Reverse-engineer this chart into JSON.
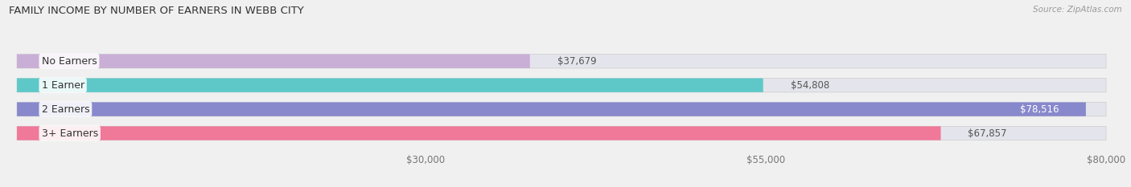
{
  "title": "FAMILY INCOME BY NUMBER OF EARNERS IN WEBB CITY",
  "source": "Source: ZipAtlas.com",
  "categories": [
    "No Earners",
    "1 Earner",
    "2 Earners",
    "3+ Earners"
  ],
  "values": [
    37679,
    54808,
    78516,
    67857
  ],
  "bar_colors": [
    "#c9aed6",
    "#5ec8c8",
    "#8888cc",
    "#f07898"
  ],
  "bg_color": "#f0f0f0",
  "bar_bg_color": "#e4e4ec",
  "xmin": 0,
  "xmax": 80000,
  "xticks": [
    30000,
    55000,
    80000
  ],
  "xtick_labels": [
    "$30,000",
    "$55,000",
    "$80,000"
  ],
  "label_fontsize": 9,
  "title_fontsize": 9.5,
  "value_fontsize": 8.5,
  "bar_height": 0.58
}
